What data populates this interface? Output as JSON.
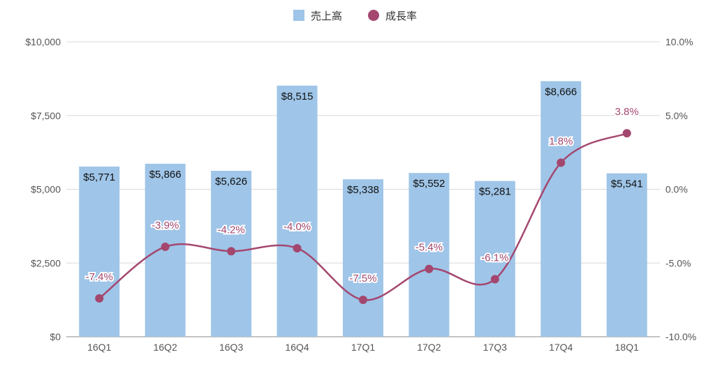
{
  "chart_data": {
    "type": "bar",
    "categories": [
      "16Q1",
      "16Q2",
      "16Q3",
      "16Q4",
      "17Q1",
      "17Q2",
      "17Q3",
      "17Q4",
      "18Q1"
    ],
    "series": [
      {
        "name": "売上高",
        "type": "bar",
        "axis": "left",
        "color": "#9fc5e8",
        "values": [
          5771,
          5866,
          5626,
          8515,
          5338,
          5552,
          5281,
          8666,
          5541
        ],
        "data_labels": [
          "$5,771",
          "$5,866",
          "$5,626",
          "$8,515",
          "$5,338",
          "$5,552",
          "$5,281",
          "$8,666",
          "$5,541"
        ]
      },
      {
        "name": "成長率",
        "type": "line",
        "axis": "right",
        "color": "#a4476f",
        "values": [
          -7.4,
          -3.9,
          -4.2,
          -4.0,
          -7.5,
          -5.4,
          -6.1,
          1.8,
          3.8
        ],
        "data_labels": [
          "-7.4%",
          "-3.9%",
          "-4.2%",
          "-4.0%",
          "-7.5%",
          "-5.4%",
          "-6.1%",
          "1.8%",
          "3.8%"
        ]
      }
    ],
    "y_left": {
      "ylim": [
        0,
        10000
      ],
      "ticks": [
        0,
        2500,
        5000,
        7500,
        10000
      ],
      "tick_labels": [
        "$0",
        "$2,500",
        "$5,000",
        "$7,500",
        "$10,000"
      ]
    },
    "y_right": {
      "ylim": [
        -10,
        10
      ],
      "ticks": [
        -10,
        -5,
        0,
        5,
        10
      ],
      "tick_labels": [
        "-10.0%",
        "-5.0%",
        "0.0%",
        "5.0%",
        "10.0%"
      ]
    },
    "legend_position": "top-center",
    "grid": true
  }
}
